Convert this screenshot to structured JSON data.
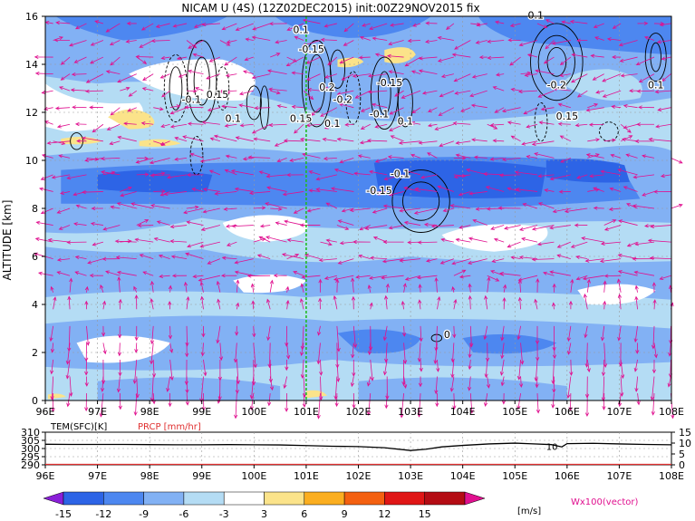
{
  "title": "NICAM U (4S) (12Z02DEC2015) init:00Z29NOV2015 fix",
  "colors": {
    "wind_vector": "#e0108f",
    "contour": "#000000",
    "guide_line": "#22bb22",
    "prcp_label": "#e03030",
    "tem_line": "#000000"
  },
  "chart_data": [
    {
      "type": "heatmap",
      "xlabel": "",
      "ylabel": "ALTITUDE [km]",
      "x_ticks": [
        "96E",
        "97E",
        "98E",
        "99E",
        "100E",
        "101E",
        "102E",
        "103E",
        "104E",
        "105E",
        "106E",
        "107E",
        "108E"
      ],
      "y_ticks": [
        "0",
        "2",
        "4",
        "6",
        "8",
        "10",
        "12",
        "14",
        "16"
      ],
      "xlim": [
        96,
        108
      ],
      "ylim": [
        0,
        16
      ],
      "vertical_marker_lon": 101,
      "contour_labels": [
        {
          "text": "-0.1",
          "lon": 98.8,
          "alt": 12.4
        },
        {
          "text": "0.15",
          "lon": 99.3,
          "alt": 12.6
        },
        {
          "text": "0.1",
          "lon": 99.6,
          "alt": 11.6
        },
        {
          "text": "0.1",
          "lon": 100.9,
          "alt": 15.3
        },
        {
          "text": "-0.15",
          "lon": 101.1,
          "alt": 14.5
        },
        {
          "text": "0.2",
          "lon": 101.4,
          "alt": 12.9
        },
        {
          "text": "-0.2",
          "lon": 101.7,
          "alt": 12.4
        },
        {
          "text": "0.15",
          "lon": 100.9,
          "alt": 11.6
        },
        {
          "text": "0.1",
          "lon": 101.5,
          "alt": 11.4
        },
        {
          "text": "-0.15",
          "lon": 102.6,
          "alt": 13.1
        },
        {
          "text": "-0.1",
          "lon": 102.4,
          "alt": 11.8
        },
        {
          "text": "0.1",
          "lon": 102.9,
          "alt": 11.5
        },
        {
          "text": "-0.1",
          "lon": 102.8,
          "alt": 9.3
        },
        {
          "text": "-0.15",
          "lon": 102.4,
          "alt": 8.6
        },
        {
          "text": "0.1",
          "lon": 105.4,
          "alt": 15.9
        },
        {
          "text": "-0.2",
          "lon": 105.8,
          "alt": 13.0
        },
        {
          "text": "0.15",
          "lon": 106.0,
          "alt": 11.7
        },
        {
          "text": "0.1",
          "lon": 107.7,
          "alt": 13.0
        },
        {
          "text": "0",
          "lon": 103.7,
          "alt": 2.6
        }
      ]
    },
    {
      "type": "line",
      "legend_labels": [
        "TEM(SFC)[K]",
        "PRCP [mm/hr]"
      ],
      "x_ticks": [
        "96E",
        "97E",
        "98E",
        "99E",
        "100E",
        "101E",
        "102E",
        "103E",
        "104E",
        "105E",
        "106E",
        "107E",
        "108E"
      ],
      "y_left_ticks": [
        "310",
        "305",
        "300",
        "295",
        "290"
      ],
      "y_right_ticks": [
        "15",
        "10",
        "5",
        "0"
      ],
      "ylim_left": [
        290,
        310
      ],
      "ylim_right": [
        0,
        15
      ],
      "series": [
        {
          "x": [
            96,
            96.5,
            97,
            97.5,
            98,
            98.5,
            99,
            99.5,
            100,
            100.5,
            101,
            101.5,
            102,
            102.5,
            103,
            103.3,
            103.6,
            104,
            104.5,
            105,
            105.3,
            105.7,
            105.9,
            106,
            106.5,
            107,
            107.5,
            108
          ],
          "y": [
            302.6,
            302.5,
            302.5,
            302.5,
            302.4,
            302.3,
            302.3,
            302.4,
            302.3,
            302.2,
            301.8,
            301.4,
            301.2,
            300.5,
            298.8,
            299.6,
            301.0,
            301.9,
            302.8,
            303.3,
            302.9,
            302.4,
            301.0,
            303.0,
            303.2,
            302.8,
            302.5,
            302.3
          ]
        }
      ],
      "annotation": "10"
    }
  ],
  "colorbar": {
    "ticks": [
      "-15",
      "-12",
      "-9",
      "-6",
      "-3",
      "3",
      "6",
      "9",
      "12",
      "15"
    ],
    "colors": [
      "#8a1fd8",
      "#2d64e6",
      "#4d87f0",
      "#82b1f4",
      "#b4dcf4",
      "#ffffff",
      "#fbe38a",
      "#fbae20",
      "#f46010",
      "#e01616",
      "#b40c14",
      "#e0108f"
    ],
    "unit": "[m/s]",
    "vector_note": "Wx100(vector)"
  }
}
